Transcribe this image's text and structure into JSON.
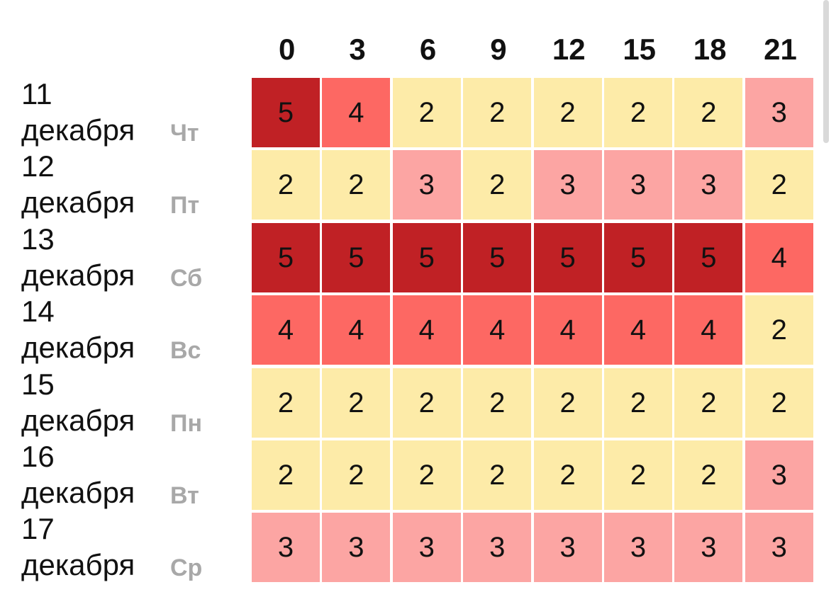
{
  "colors": {
    "1": "#fdeba8",
    "2": "#fdeba8",
    "3": "#fca5a3",
    "4": "#fd6863",
    "5": "#c02125"
  },
  "chart_data": {
    "type": "heatmap",
    "x": [
      "0",
      "3",
      "6",
      "9",
      "12",
      "15",
      "18",
      "21"
    ],
    "rows": [
      {
        "day": "11",
        "month": "декабря",
        "weekday": "Чт",
        "values": [
          5,
          4,
          2,
          2,
          2,
          2,
          2,
          3
        ]
      },
      {
        "day": "12",
        "month": "декабря",
        "weekday": "Пт",
        "values": [
          2,
          2,
          3,
          2,
          3,
          3,
          3,
          2
        ]
      },
      {
        "day": "13",
        "month": "декабря",
        "weekday": "Сб",
        "values": [
          5,
          5,
          5,
          5,
          5,
          5,
          5,
          4
        ]
      },
      {
        "day": "14",
        "month": "декабря",
        "weekday": "Вс",
        "values": [
          4,
          4,
          4,
          4,
          4,
          4,
          4,
          2
        ]
      },
      {
        "day": "15",
        "month": "декабря",
        "weekday": "Пн",
        "values": [
          2,
          2,
          2,
          2,
          2,
          2,
          2,
          2
        ]
      },
      {
        "day": "16",
        "month": "декабря",
        "weekday": "Вт",
        "values": [
          2,
          2,
          2,
          2,
          2,
          2,
          2,
          3
        ]
      },
      {
        "day": "17",
        "month": "декабря",
        "weekday": "Ср",
        "values": [
          3,
          3,
          3,
          3,
          3,
          3,
          3,
          3
        ]
      }
    ]
  }
}
